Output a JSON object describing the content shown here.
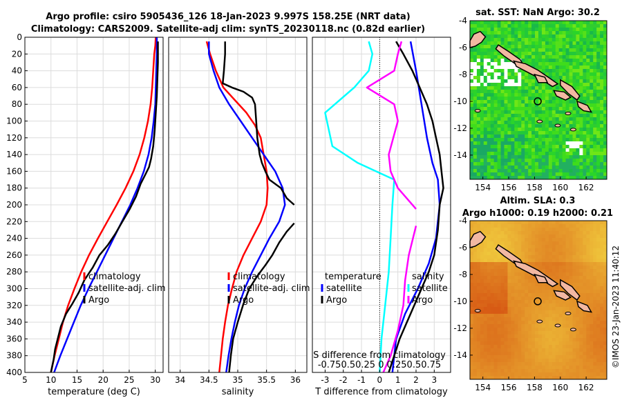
{
  "title_line1": "Argo profile: csiro 5905436_126 18-Jan-2023 9.997S 158.25E (NRT data)",
  "title_line2": "Climatology: CARS2009. Satellite-adj clim: synTS_20230118.nc (0.82d earlier)",
  "colors": {
    "climatology": "#ff0000",
    "satellite": "#0000ff",
    "argo": "#000000",
    "salinity_diff": "#00ffff",
    "temp_diff": "#ff00ff"
  },
  "chart_data": [
    {
      "type": "line",
      "id": "temperature",
      "xlabel": "temperature (deg C)",
      "ylabel": "",
      "xlim": [
        5,
        31.5
      ],
      "xticks": [
        5,
        10,
        15,
        20,
        25,
        30
      ],
      "ylim": [
        0,
        400
      ],
      "yticks": [
        0,
        20,
        40,
        60,
        80,
        100,
        120,
        140,
        160,
        180,
        200,
        220,
        240,
        260,
        280,
        300,
        320,
        340,
        360,
        380,
        400
      ],
      "legend": [
        "climatology",
        "satellite-adj. clim",
        "Argo"
      ],
      "series": [
        {
          "name": "climatology",
          "color": "#ff0000",
          "points": [
            [
              30.1,
              0
            ],
            [
              30.0,
              10
            ],
            [
              29.8,
              20
            ],
            [
              29.6,
              40
            ],
            [
              29.4,
              60
            ],
            [
              29.1,
              80
            ],
            [
              28.6,
              100
            ],
            [
              27.9,
              120
            ],
            [
              27.0,
              140
            ],
            [
              25.8,
              160
            ],
            [
              24.3,
              180
            ],
            [
              22.6,
              200
            ],
            [
              20.8,
              220
            ],
            [
              19.0,
              240
            ],
            [
              17.3,
              260
            ],
            [
              15.8,
              280
            ],
            [
              14.5,
              300
            ],
            [
              13.3,
              320
            ],
            [
              12.3,
              340
            ],
            [
              11.5,
              360
            ],
            [
              10.7,
              380
            ],
            [
              10.0,
              400
            ]
          ]
        },
        {
          "name": "satellite-adj. clim",
          "color": "#0000ff",
          "points": [
            [
              30.3,
              0
            ],
            [
              30.3,
              20
            ],
            [
              30.2,
              40
            ],
            [
              30.1,
              60
            ],
            [
              30.0,
              80
            ],
            [
              29.7,
              100
            ],
            [
              29.3,
              120
            ],
            [
              28.7,
              140
            ],
            [
              27.8,
              160
            ],
            [
              26.6,
              180
            ],
            [
              25.2,
              200
            ],
            [
              23.6,
              220
            ],
            [
              22.0,
              240
            ],
            [
              20.4,
              260
            ],
            [
              18.8,
              280
            ],
            [
              17.2,
              300
            ],
            [
              15.7,
              320
            ],
            [
              14.4,
              340
            ],
            [
              13.1,
              360
            ],
            [
              11.8,
              380
            ],
            [
              10.6,
              400
            ]
          ]
        },
        {
          "name": "Argo",
          "color": "#000000",
          "points": [
            [
              30.5,
              5
            ],
            [
              30.5,
              30
            ],
            [
              30.4,
              50
            ],
            [
              30.3,
              70
            ],
            [
              30.1,
              90
            ],
            [
              29.9,
              110
            ],
            [
              29.6,
              130
            ],
            [
              29.2,
              145
            ],
            [
              28.8,
              155
            ],
            [
              28.0,
              165
            ],
            [
              27.2,
              175
            ],
            [
              26.3,
              190
            ],
            [
              25.1,
              205
            ],
            [
              23.7,
              220
            ],
            [
              22.3,
              235
            ],
            [
              20.9,
              248
            ],
            [
              19.3,
              260
            ],
            [
              18.0,
              275
            ],
            [
              16.4,
              290
            ],
            [
              15.3,
              305
            ],
            [
              14.1,
              318
            ],
            [
              12.9,
              330
            ],
            [
              11.9,
              345
            ],
            [
              11.3,
              360
            ],
            [
              10.8,
              372
            ],
            [
              10.5,
              385
            ],
            [
              10.0,
              400
            ]
          ]
        }
      ]
    },
    {
      "type": "line",
      "id": "salinity",
      "xlabel": "salinity",
      "ylabel": "",
      "xlim": [
        33.8,
        36.2
      ],
      "xticks": [
        34,
        34.5,
        35,
        35.5,
        36
      ],
      "xticklabels": [
        "34",
        "34.5",
        "35",
        "35.5",
        "36"
      ],
      "ylim": [
        0,
        400
      ],
      "legend": [
        "climatology",
        "satellite-adj. clim",
        "Argo"
      ],
      "series": [
        {
          "name": "climatology",
          "color": "#ff0000",
          "points": [
            [
              34.46,
              5
            ],
            [
              34.52,
              20
            ],
            [
              34.62,
              40
            ],
            [
              34.75,
              60
            ],
            [
              34.95,
              75
            ],
            [
              35.15,
              90
            ],
            [
              35.3,
              105
            ],
            [
              35.4,
              120
            ],
            [
              35.45,
              140
            ],
            [
              35.5,
              160
            ],
            [
              35.52,
              180
            ],
            [
              35.5,
              200
            ],
            [
              35.4,
              220
            ],
            [
              35.25,
              240
            ],
            [
              35.1,
              260
            ],
            [
              34.98,
              280
            ],
            [
              34.9,
              300
            ],
            [
              34.83,
              320
            ],
            [
              34.78,
              340
            ],
            [
              34.74,
              360
            ],
            [
              34.71,
              380
            ],
            [
              34.68,
              400
            ]
          ]
        },
        {
          "name": "satellite-adj. clim",
          "color": "#0000ff",
          "points": [
            [
              34.5,
              5
            ],
            [
              34.5,
              20
            ],
            [
              34.58,
              40
            ],
            [
              34.68,
              60
            ],
            [
              34.85,
              80
            ],
            [
              35.05,
              100
            ],
            [
              35.25,
              120
            ],
            [
              35.45,
              140
            ],
            [
              35.65,
              160
            ],
            [
              35.78,
              180
            ],
            [
              35.82,
              200
            ],
            [
              35.72,
              220
            ],
            [
              35.55,
              240
            ],
            [
              35.4,
              260
            ],
            [
              35.25,
              280
            ],
            [
              35.12,
              300
            ],
            [
              35.02,
              320
            ],
            [
              34.95,
              340
            ],
            [
              34.89,
              360
            ],
            [
              34.84,
              380
            ],
            [
              34.8,
              400
            ]
          ]
        },
        {
          "name": "Argo",
          "color": "#000000",
          "points": [
            [
              34.78,
              5
            ],
            [
              34.78,
              20
            ],
            [
              34.76,
              40
            ],
            [
              34.74,
              55
            ],
            [
              34.9,
              60
            ],
            [
              35.1,
              65
            ],
            [
              35.25,
              72
            ],
            [
              35.3,
              80
            ],
            [
              35.32,
              100
            ],
            [
              35.34,
              120
            ],
            [
              35.38,
              140
            ],
            [
              35.42,
              150
            ],
            [
              35.48,
              160
            ],
            [
              35.55,
              170
            ],
            [
              35.75,
              180
            ],
            [
              35.85,
              192
            ],
            [
              35.98,
              200
            ]
          ]
        },
        {
          "name": "Argo-lower",
          "color": "#000000",
          "points": [
            [
              35.98,
              222
            ],
            [
              35.85,
              232
            ],
            [
              35.72,
              245
            ],
            [
              35.6,
              260
            ],
            [
              35.48,
              272
            ],
            [
              35.34,
              285
            ],
            [
              35.2,
              300
            ],
            [
              35.1,
              318
            ],
            [
              35.0,
              340
            ],
            [
              34.92,
              360
            ],
            [
              34.88,
              380
            ],
            [
              34.85,
              400
            ]
          ]
        }
      ]
    },
    {
      "type": "line",
      "id": "difference",
      "xlabel": "T difference from climatology",
      "ylabel": "",
      "xlim": [
        -3.7,
        3.9
      ],
      "xticks": [
        -3,
        -2,
        -1,
        0,
        1,
        2,
        3
      ],
      "xticklabels": [
        "-3",
        "-2",
        "-1",
        "0",
        "1",
        "2",
        "3"
      ],
      "ylim": [
        0,
        400
      ],
      "legend_left": [
        "temperature",
        "satellite",
        "Argo"
      ],
      "legend_right": [
        "salinity",
        "satellite",
        "Argo"
      ],
      "inset_label": "S difference from climatology",
      "inset_ticks": "-0.750.50.25 0 0.250.50.75",
      "series": [
        {
          "name": "temp-satellite",
          "color": "#0000ff",
          "points": [
            [
              1.7,
              5
            ],
            [
              2.0,
              40
            ],
            [
              2.3,
              80
            ],
            [
              2.6,
              120
            ],
            [
              2.9,
              150
            ],
            [
              3.2,
              170
            ],
            [
              3.3,
              200
            ],
            [
              3.1,
              240
            ],
            [
              2.7,
              270
            ],
            [
              2.1,
              300
            ],
            [
              1.4,
              330
            ],
            [
              0.9,
              360
            ],
            [
              0.7,
              400
            ]
          ]
        },
        {
          "name": "temp-Argo",
          "color": "#000000",
          "points": [
            [
              0.9,
              5
            ],
            [
              1.3,
              20
            ],
            [
              1.8,
              40
            ],
            [
              2.2,
              60
            ],
            [
              2.6,
              80
            ],
            [
              2.9,
              100
            ],
            [
              3.1,
              120
            ],
            [
              3.3,
              140
            ],
            [
              3.4,
              160
            ],
            [
              3.5,
              180
            ],
            [
              3.3,
              200
            ],
            [
              3.2,
              230
            ],
            [
              3.0,
              260
            ],
            [
              2.7,
              280
            ],
            [
              2.3,
              300
            ],
            [
              1.9,
              320
            ],
            [
              1.5,
              340
            ],
            [
              1.1,
              360
            ],
            [
              0.8,
              380
            ],
            [
              0.5,
              400
            ]
          ]
        },
        {
          "name": "sal-satellite",
          "color": "#00ffff",
          "points": [
            [
              -0.6,
              5
            ],
            [
              -0.4,
              20
            ],
            [
              -0.6,
              40
            ],
            [
              -1.4,
              60
            ],
            [
              -3.0,
              90
            ],
            [
              -2.6,
              130
            ],
            [
              -1.2,
              150
            ],
            [
              0.8,
              170
            ],
            [
              0.7,
              200
            ],
            [
              0.6,
              240
            ],
            [
              0.5,
              280
            ],
            [
              0.3,
              320
            ],
            [
              0.1,
              360
            ],
            [
              0.0,
              400
            ]
          ]
        },
        {
          "name": "sal-Argo",
          "color": "#ff00ff",
          "points": [
            [
              1.2,
              5
            ],
            [
              1.0,
              20
            ],
            [
              0.8,
              40
            ],
            [
              -0.7,
              60
            ],
            [
              0.8,
              80
            ],
            [
              1.0,
              100
            ],
            [
              0.5,
              140
            ],
            [
              0.6,
              160
            ],
            [
              1.0,
              180
            ],
            [
              2.0,
              205
            ]
          ]
        },
        {
          "name": "sal-Argo-lower",
          "color": "#ff00ff",
          "points": [
            [
              2.0,
              225
            ],
            [
              1.6,
              260
            ],
            [
              1.4,
              290
            ],
            [
              1.3,
              320
            ],
            [
              1.0,
              350
            ],
            [
              0.6,
              380
            ],
            [
              0.2,
              400
            ]
          ]
        }
      ]
    }
  ],
  "maps": [
    {
      "id": "sst",
      "title": "sat. SST: NaN Argo: 30.2",
      "xticks": [
        "154",
        "156",
        "158",
        "160",
        "162"
      ],
      "yticks": [
        "-4",
        "-6",
        "-8",
        "-10",
        "-12",
        "-14"
      ]
    },
    {
      "id": "sla",
      "title1": "Altim. SLA: 0.3",
      "title2": "Argo h1000: 0.19 h2000: 0.21",
      "xticks": [
        "154",
        "156",
        "158",
        "160",
        "162"
      ],
      "yticks": [
        "-4",
        "-6",
        "-8",
        "-10",
        "-12",
        "-14"
      ]
    }
  ],
  "watermark": "©IMOS 23-Jan-2023 11:40:12"
}
